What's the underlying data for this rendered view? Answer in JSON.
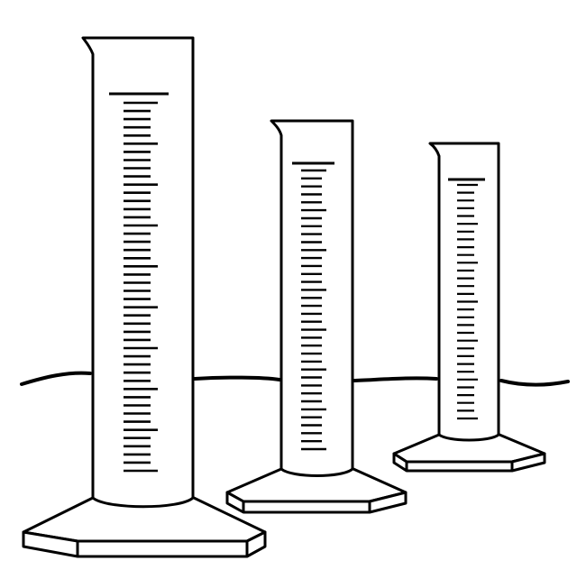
{
  "scene": {
    "background_color": "#ffffff",
    "line_color": "#000000",
    "horizon": "wavy-line",
    "cylinders": [
      {
        "name": "large",
        "major_marks": 9,
        "minor_per_major": 4
      },
      {
        "name": "medium",
        "major_marks": 7,
        "minor_per_major": 4
      },
      {
        "name": "small",
        "major_marks": 6,
        "minor_per_major": 4
      }
    ]
  }
}
